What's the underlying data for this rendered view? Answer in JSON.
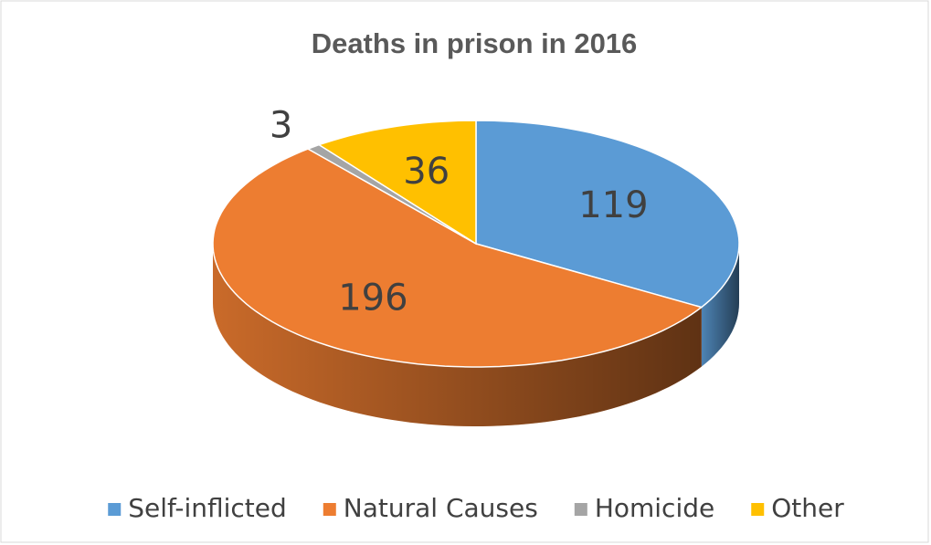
{
  "chart_data": {
    "type": "pie3d",
    "title": "Deaths in prison in 2016",
    "categories": [
      "Self-inflicted",
      "Natural Causes",
      "Homicide",
      "Other"
    ],
    "values": [
      119,
      196,
      3,
      36
    ],
    "colors": [
      "#5b9bd5",
      "#ed7d31",
      "#a5a5a5",
      "#ffc000"
    ],
    "legend": "bottom"
  }
}
